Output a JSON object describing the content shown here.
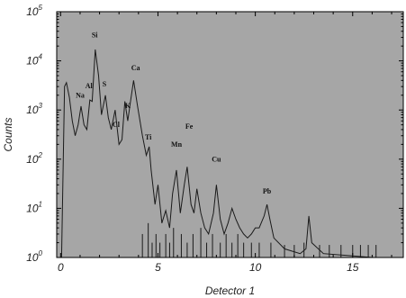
{
  "chart_data": {
    "type": "line",
    "xlabel": "Detector 1",
    "ylabel": "Counts",
    "xlim": [
      -0.2,
      17.6
    ],
    "ylim": [
      1,
      100000
    ],
    "y_scale": "log",
    "grid": false,
    "background_color": "#a6a6a6",
    "line_color": "#1a1a1a",
    "x_ticks": [
      {
        "value": 0,
        "label": "0"
      },
      {
        "value": 5,
        "label": "5"
      },
      {
        "value": 10,
        "label": "10"
      },
      {
        "value": 15,
        "label": "15"
      }
    ],
    "y_ticks": [
      {
        "value": 1,
        "base": "10",
        "exp": "0"
      },
      {
        "value": 10,
        "base": "10",
        "exp": "1"
      },
      {
        "value": 100,
        "base": "10",
        "exp": "2"
      },
      {
        "value": 1000,
        "base": "10",
        "exp": "3"
      },
      {
        "value": 10000,
        "base": "10",
        "exp": "4"
      },
      {
        "value": 100000,
        "base": "10",
        "exp": "5"
      }
    ],
    "series": [
      {
        "points": [
          [
            0.05,
            1
          ],
          [
            0.2,
            3000
          ],
          [
            0.3,
            3600
          ],
          [
            0.45,
            1800
          ],
          [
            0.6,
            600
          ],
          [
            0.75,
            300
          ],
          [
            0.9,
            500
          ],
          [
            1.05,
            1200
          ],
          [
            1.2,
            500
          ],
          [
            1.35,
            400
          ],
          [
            1.5,
            1600
          ],
          [
            1.62,
            1500
          ],
          [
            1.78,
            17000
          ],
          [
            1.95,
            5000
          ],
          [
            2.1,
            800
          ],
          [
            2.3,
            2000
          ],
          [
            2.45,
            700
          ],
          [
            2.6,
            400
          ],
          [
            2.8,
            1000
          ],
          [
            3.0,
            200
          ],
          [
            3.15,
            250
          ],
          [
            3.3,
            1500
          ],
          [
            3.45,
            600
          ],
          [
            3.6,
            1600
          ],
          [
            3.75,
            4000
          ],
          [
            3.95,
            1200
          ],
          [
            4.2,
            300
          ],
          [
            4.4,
            120
          ],
          [
            4.55,
            180
          ],
          [
            4.65,
            60
          ],
          [
            4.85,
            12
          ],
          [
            5.0,
            30
          ],
          [
            5.2,
            5
          ],
          [
            5.4,
            9
          ],
          [
            5.6,
            4
          ],
          [
            5.75,
            20
          ],
          [
            5.95,
            60
          ],
          [
            6.15,
            8
          ],
          [
            6.35,
            30
          ],
          [
            6.5,
            70
          ],
          [
            6.7,
            12
          ],
          [
            6.85,
            8
          ],
          [
            7.0,
            25
          ],
          [
            7.2,
            8
          ],
          [
            7.4,
            4
          ],
          [
            7.6,
            3
          ],
          [
            7.85,
            8
          ],
          [
            8.0,
            30
          ],
          [
            8.2,
            6
          ],
          [
            8.4,
            3
          ],
          [
            8.6,
            5
          ],
          [
            8.8,
            10
          ],
          [
            9.0,
            6
          ],
          [
            9.2,
            4
          ],
          [
            9.4,
            3
          ],
          [
            9.6,
            2.5
          ],
          [
            9.8,
            3
          ],
          [
            10.0,
            4
          ],
          [
            10.2,
            4
          ],
          [
            10.45,
            7
          ],
          [
            10.6,
            12
          ],
          [
            10.75,
            6
          ],
          [
            10.95,
            2.5
          ],
          [
            11.5,
            1.5
          ],
          [
            12.3,
            1.2
          ],
          [
            12.6,
            1.5
          ],
          [
            12.75,
            7
          ],
          [
            12.9,
            2
          ],
          [
            13.5,
            1.2
          ],
          [
            16.0,
            1
          ],
          [
            17.6,
            1
          ]
        ]
      }
    ],
    "noise_spikes": [
      {
        "x": 4.2,
        "top": 3
      },
      {
        "x": 4.5,
        "top": 5
      },
      {
        "x": 4.7,
        "top": 2
      },
      {
        "x": 4.9,
        "top": 3
      },
      {
        "x": 5.1,
        "top": 2
      },
      {
        "x": 5.4,
        "top": 3
      },
      {
        "x": 5.6,
        "top": 2
      },
      {
        "x": 5.8,
        "top": 4
      },
      {
        "x": 6.2,
        "top": 3
      },
      {
        "x": 6.5,
        "top": 2
      },
      {
        "x": 6.8,
        "top": 3
      },
      {
        "x": 7.2,
        "top": 4
      },
      {
        "x": 7.5,
        "top": 2
      },
      {
        "x": 7.8,
        "top": 3
      },
      {
        "x": 8.2,
        "top": 2
      },
      {
        "x": 8.5,
        "top": 3
      },
      {
        "x": 8.8,
        "top": 2
      },
      {
        "x": 9.1,
        "top": 3
      },
      {
        "x": 9.4,
        "top": 2
      },
      {
        "x": 9.8,
        "top": 2
      },
      {
        "x": 10.2,
        "top": 2
      },
      {
        "x": 10.8,
        "top": 2
      },
      {
        "x": 11.5,
        "top": 1.8
      },
      {
        "x": 12.0,
        "top": 1.8
      },
      {
        "x": 12.5,
        "top": 2
      },
      {
        "x": 13.3,
        "top": 1.8
      },
      {
        "x": 13.8,
        "top": 1.8
      },
      {
        "x": 14.4,
        "top": 1.8
      },
      {
        "x": 15.0,
        "top": 1.8
      },
      {
        "x": 15.4,
        "top": 1.8
      },
      {
        "x": 15.8,
        "top": 1.8
      },
      {
        "x": 16.2,
        "top": 1.8
      }
    ],
    "annotations": [
      {
        "text": "Na",
        "x": 1.0,
        "y": 1800
      },
      {
        "text": "Al",
        "x": 1.45,
        "y": 2800
      },
      {
        "text": "Si",
        "x": 1.75,
        "y": 30000
      },
      {
        "text": "S",
        "x": 2.25,
        "y": 3000
      },
      {
        "text": "Cl",
        "x": 2.85,
        "y": 450
      },
      {
        "text": "K",
        "x": 3.45,
        "y": 1100
      },
      {
        "text": "Ca",
        "x": 3.85,
        "y": 6500
      },
      {
        "text": "Ti",
        "x": 4.5,
        "y": 250
      },
      {
        "text": "Mn",
        "x": 5.95,
        "y": 180
      },
      {
        "text": "Fe",
        "x": 6.6,
        "y": 420
      },
      {
        "text": "Cu",
        "x": 8.0,
        "y": 90
      },
      {
        "text": "Pb",
        "x": 10.6,
        "y": 20
      }
    ]
  }
}
